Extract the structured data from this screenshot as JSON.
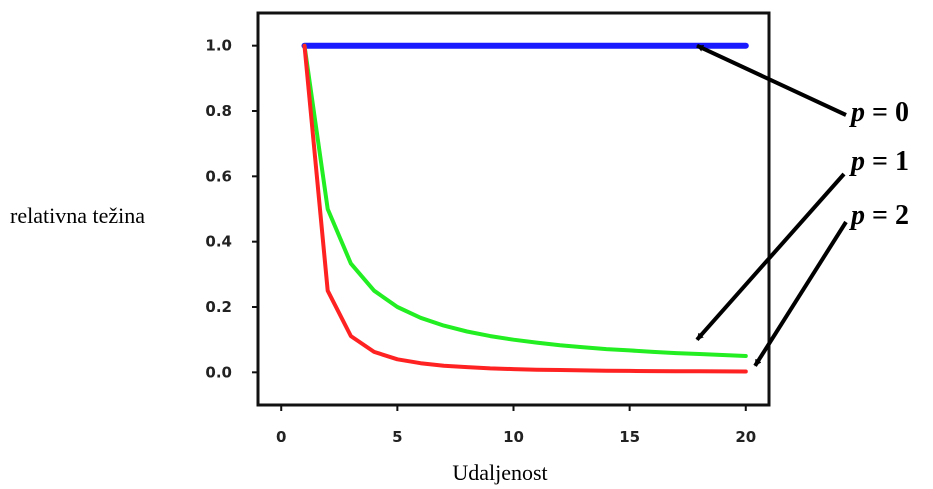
{
  "chart_data": {
    "type": "line",
    "xlabel": "Udaljenost",
    "ylabel": "relativna težina",
    "xlim": [
      -1,
      21
    ],
    "ylim": [
      -0.1,
      1.1
    ],
    "xticks": [
      0,
      5,
      10,
      15,
      20
    ],
    "xtick_labels": [
      "0",
      "5",
      "10",
      "15",
      "20"
    ],
    "yticks": [
      0.0,
      0.2,
      0.4,
      0.6,
      0.8,
      1.0
    ],
    "ytick_labels": [
      "0.0",
      "0.2",
      "0.4",
      "0.6",
      "0.8",
      "1.0"
    ],
    "grid": false,
    "x": [
      1,
      2,
      3,
      4,
      5,
      6,
      7,
      8,
      9,
      10,
      11,
      12,
      13,
      14,
      15,
      16,
      17,
      18,
      19,
      20
    ],
    "series": [
      {
        "key": "p0",
        "color": "#1a1aff",
        "values": [
          1,
          1,
          1,
          1,
          1,
          1,
          1,
          1,
          1,
          1,
          1,
          1,
          1,
          1,
          1,
          1,
          1,
          1,
          1,
          1
        ]
      },
      {
        "key": "p1",
        "color": "#22ee22",
        "values": [
          1.0,
          0.5,
          0.333,
          0.25,
          0.2,
          0.167,
          0.143,
          0.125,
          0.111,
          0.1,
          0.091,
          0.083,
          0.077,
          0.071,
          0.067,
          0.0625,
          0.059,
          0.056,
          0.053,
          0.05
        ]
      },
      {
        "key": "p2",
        "color": "#ff2222",
        "values": [
          1.0,
          0.25,
          0.111,
          0.0625,
          0.04,
          0.028,
          0.02,
          0.016,
          0.012,
          0.01,
          0.008,
          0.007,
          0.006,
          0.005,
          0.0044,
          0.0039,
          0.0035,
          0.0031,
          0.0028,
          0.0025
        ]
      }
    ],
    "annotations": [
      {
        "key": "p0",
        "var": "p",
        "text": " = 0",
        "target": [
          17.9,
          1.0
        ]
      },
      {
        "key": "p1",
        "var": "p",
        "text": " = 1",
        "target": [
          17.9,
          0.1
        ]
      },
      {
        "key": "p2",
        "var": "p",
        "text": " = 2",
        "target": [
          20.4,
          0.02
        ]
      }
    ]
  }
}
